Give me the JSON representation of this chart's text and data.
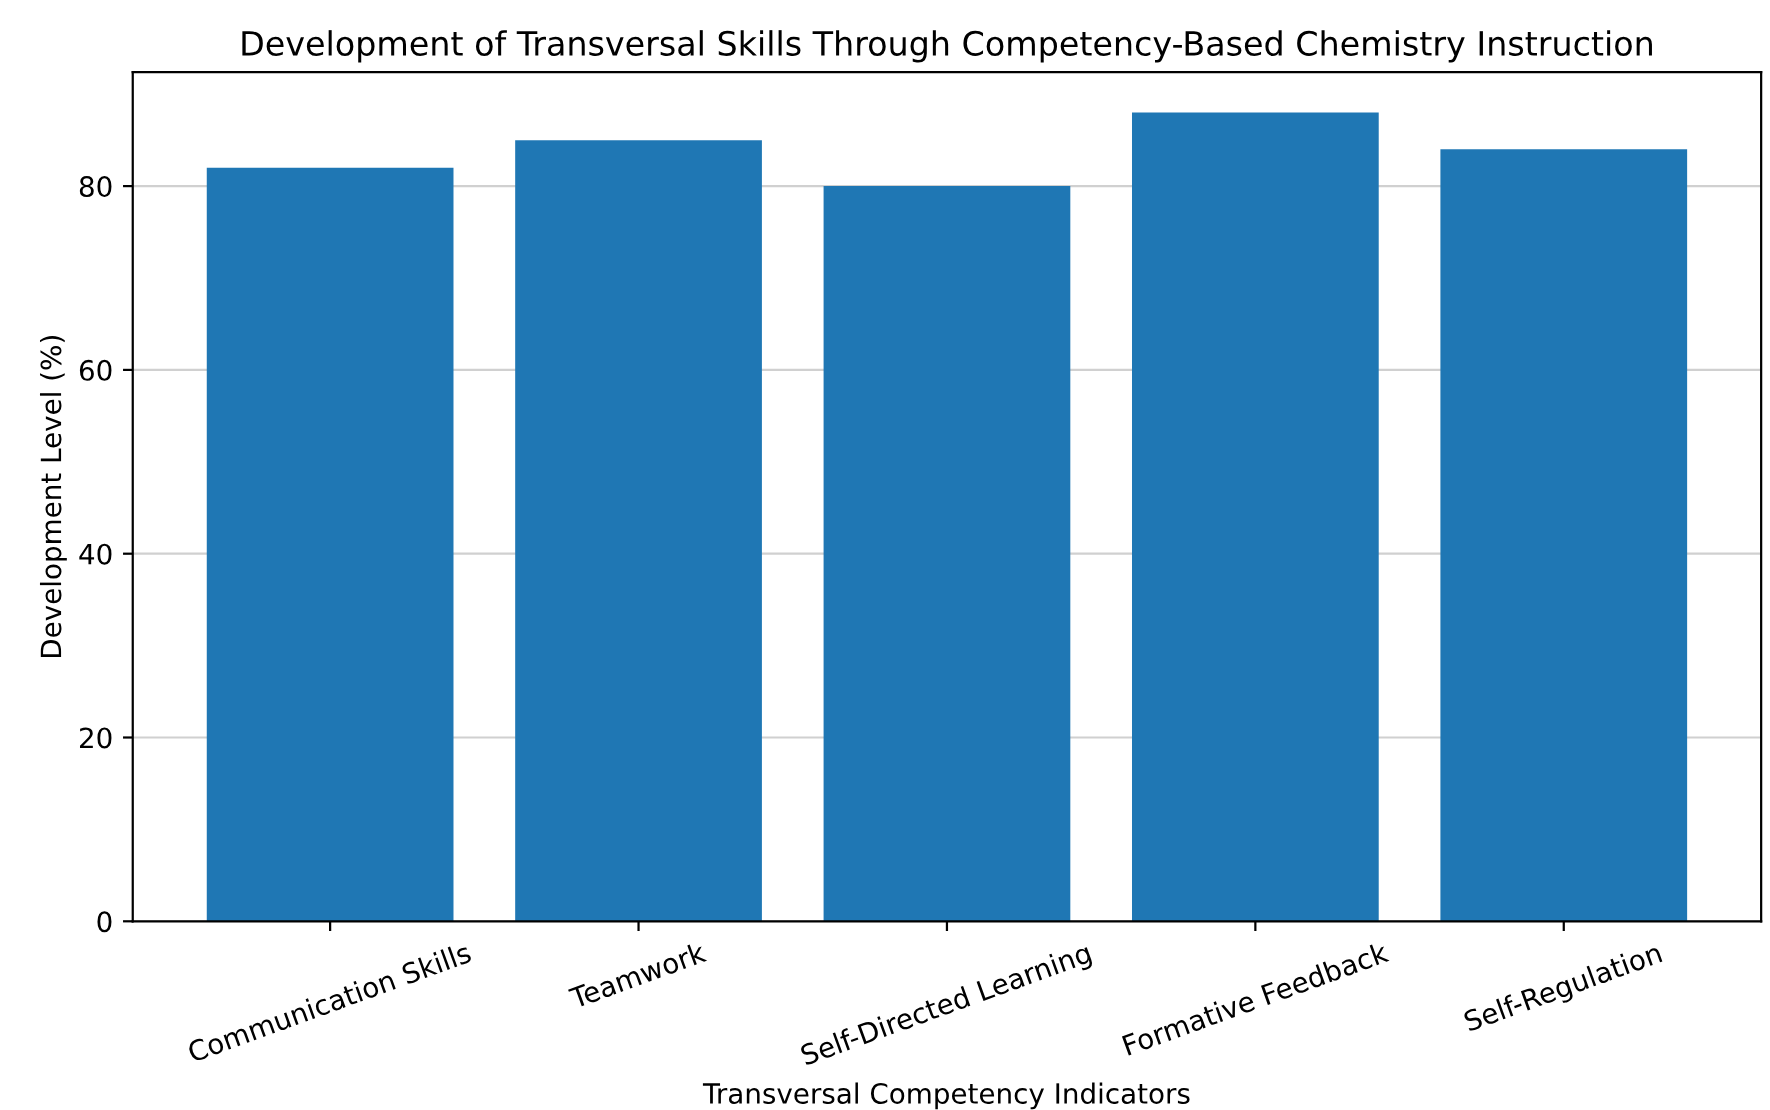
{
  "chart_data": {
    "type": "bar",
    "title": "Development of Transversal Skills Through Competency-Based Chemistry Instruction",
    "xlabel": "Transversal Competency Indicators",
    "ylabel": "Development Level (%)",
    "categories": [
      "Communication Skills",
      "Teamwork",
      "Self-Directed Learning",
      "Formative Feedback",
      "Self-Regulation"
    ],
    "values": [
      82,
      85,
      80,
      88,
      84
    ],
    "color": "#1f77b4",
    "ylim": [
      0,
      92.4
    ],
    "yticks": [
      0,
      20,
      40,
      60,
      80
    ],
    "grid": "y"
  }
}
